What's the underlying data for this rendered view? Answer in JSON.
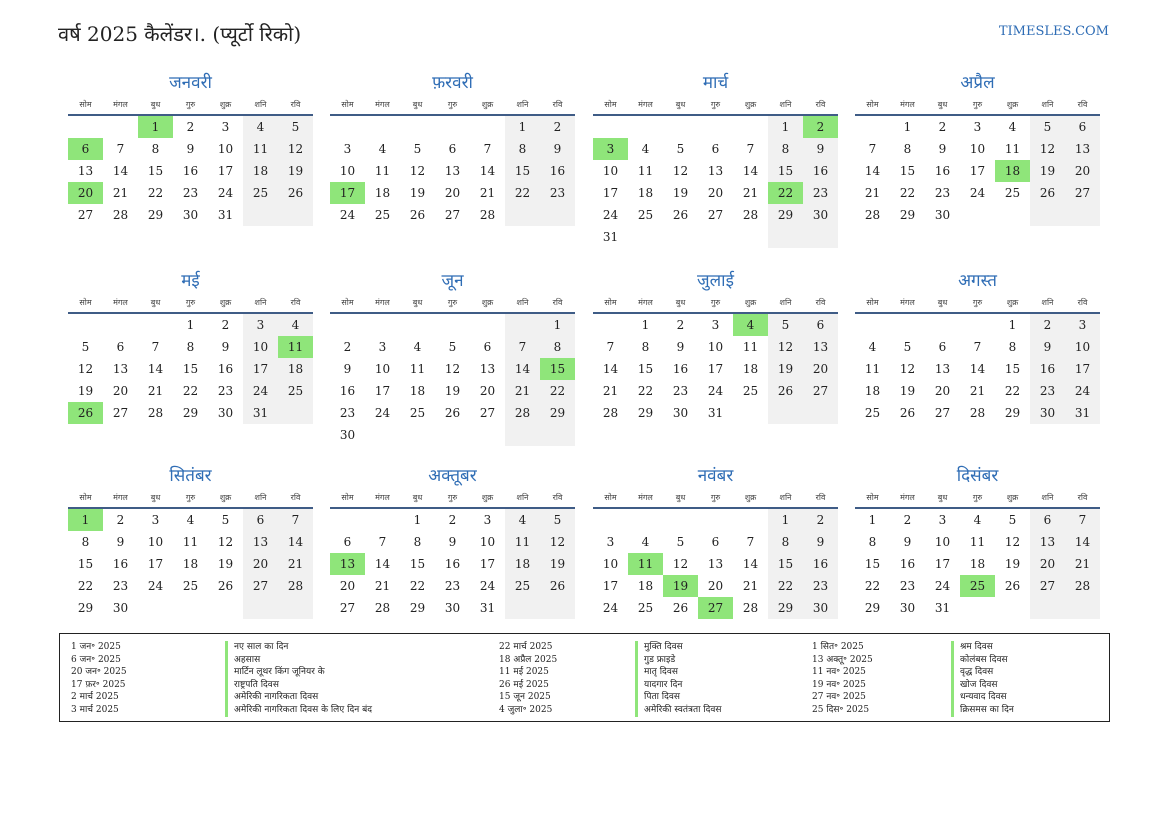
{
  "header": {
    "title": "वर्ष 2025 कैलेंडर।. (प्यूर्टो रिको)",
    "site": "TIMESLES.COM"
  },
  "weekdays": [
    "सोम",
    "मंगल",
    "बुध",
    "गुरु",
    "शुक्र",
    "शनि",
    "रवि"
  ],
  "months": [
    {
      "name": "जनवरी",
      "offset": 2,
      "days": 31,
      "holidays": [
        1,
        6,
        20
      ]
    },
    {
      "name": "फ़रवरी",
      "offset": 5,
      "days": 28,
      "holidays": [
        17
      ]
    },
    {
      "name": "मार्च",
      "offset": 5,
      "days": 31,
      "holidays": [
        2,
        3,
        22
      ]
    },
    {
      "name": "अप्रैल",
      "offset": 1,
      "days": 30,
      "holidays": [
        18
      ]
    },
    {
      "name": "मई",
      "offset": 3,
      "days": 31,
      "holidays": [
        11,
        26
      ]
    },
    {
      "name": "जून",
      "offset": 6,
      "days": 30,
      "holidays": [
        15
      ]
    },
    {
      "name": "जुलाई",
      "offset": 1,
      "days": 31,
      "holidays": [
        4
      ]
    },
    {
      "name": "अगस्त",
      "offset": 4,
      "days": 31,
      "holidays": []
    },
    {
      "name": "सितंबर",
      "offset": 0,
      "days": 30,
      "holidays": [
        1
      ]
    },
    {
      "name": "अक्तूबर",
      "offset": 2,
      "days": 31,
      "holidays": [
        13
      ]
    },
    {
      "name": "नवंबर",
      "offset": 5,
      "days": 30,
      "holidays": [
        11,
        19,
        27
      ]
    },
    {
      "name": "दिसंबर",
      "offset": 0,
      "days": 31,
      "holidays": [
        25
      ]
    }
  ],
  "legend": [
    {
      "dates": [
        "1 जन॰ 2025",
        "6 जन॰ 2025",
        "20 जन॰ 2025",
        "17 फ़र॰ 2025",
        "2 मार्च 2025",
        "3 मार्च 2025"
      ],
      "names": [
        "नए साल का दिन",
        "अहसास",
        "मार्टिन लूथर किंग जूनियर के",
        "राष्ट्रपति दिवस",
        "अमेरिकी नागरिकता दिवस",
        "अमेरिकी नागरिकता दिवस के लिए दिन बंद"
      ]
    },
    {
      "dates": [
        "22 मार्च 2025",
        "18 अप्रैल 2025",
        "11 मई 2025",
        "26 मई 2025",
        "15 जून 2025",
        "4 जुला॰ 2025"
      ],
      "names": [
        "मुक्ति दिवस",
        "गुड फ्राइडे",
        "मातृ दिवस",
        "यादगार दिन",
        "पिता दिवस",
        "अमेरिकी स्वतंत्रता दिवस"
      ]
    },
    {
      "dates": [
        "1 सित॰ 2025",
        "13 अक्तू॰ 2025",
        "11 नव॰ 2025",
        "19 नव॰ 2025",
        "27 नव॰ 2025",
        "25 दिस॰ 2025"
      ],
      "names": [
        "श्रम दिवस",
        "कोलंबस दिवस",
        "वृद्ध दिवस",
        "खोज दिवस",
        "धन्यवाद दिवस",
        "क्रिसमस का दिन"
      ]
    }
  ]
}
